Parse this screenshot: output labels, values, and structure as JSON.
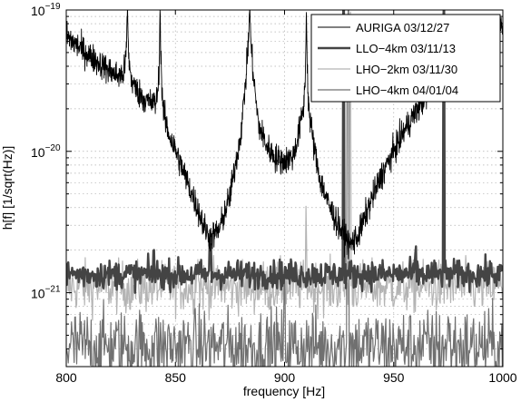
{
  "chart_data": {
    "type": "line",
    "xlabel": "frequency [Hz]",
    "ylabel": "h[f] [1/sqrt(Hz)]",
    "xlim": [
      800,
      1000
    ],
    "ylim": [
      3e-22,
      1e-19
    ],
    "y_scale": "log",
    "grid": true,
    "legend_position": "top-right",
    "x_ticks": [
      800,
      850,
      900,
      950,
      1000
    ],
    "x_tick_labels": [
      "800",
      "850",
      "900",
      "950",
      "1000"
    ],
    "y_ticks": [
      1e-21,
      1e-20,
      1e-19
    ],
    "y_tick_labels": [
      {
        "base": "10",
        "exp": "−21"
      },
      {
        "base": "10",
        "exp": "−20"
      },
      {
        "base": "10",
        "exp": "−19"
      }
    ],
    "series": [
      {
        "name": "AURIGA 03/12/27",
        "color": "#000000",
        "style": "thin",
        "x": [
          800,
          810,
          820,
          830,
          840,
          850,
          855,
          860,
          863,
          866,
          870,
          875,
          880,
          884,
          888,
          892,
          896,
          900,
          904,
          908,
          912,
          916,
          920,
          925,
          930,
          934,
          938,
          945,
          955,
          965,
          975,
          985,
          995,
          1000
        ],
        "values": [
          6.5e-20,
          4.8e-20,
          3.6e-20,
          2.7e-20,
          1.9e-20,
          9.5e-21,
          6e-21,
          3.8e-21,
          2.8e-21,
          2.3e-21,
          2.6e-21,
          4.5e-21,
          1.2e-20,
          5e-20,
          1.4e-20,
          1e-20,
          8.5e-21,
          8e-21,
          8.5e-21,
          1.4e-20,
          1.2e-20,
          6e-21,
          4e-21,
          2.8e-21,
          2.1e-21,
          2.5e-21,
          3.8e-21,
          7e-21,
          1.4e-20,
          2.5e-20,
          4.2e-20,
          5.8e-20,
          7.5e-20,
          8.5e-20
        ],
        "peaks": [
          {
            "x": 828,
            "value": 1e-19
          },
          {
            "x": 843,
            "value": 1e-19
          },
          {
            "x": 884,
            "value": 1e-19
          },
          {
            "x": 910,
            "value": 1e-19
          }
        ]
      },
      {
        "name": "LLO−4km 03/11/13",
        "color": "#444444",
        "style": "thick",
        "x": [
          800,
          1000
        ],
        "values": [
          1.35e-21,
          1.35e-21
        ],
        "peaks": [
          {
            "x": 840,
            "value": 1.9e-21
          },
          {
            "x": 866,
            "value": 2e-21
          },
          {
            "x": 927,
            "value": 1e-19
          },
          {
            "x": 960,
            "value": 1.9e-21
          },
          {
            "x": 973,
            "value": 1e-19
          }
        ]
      },
      {
        "name": "LHO−2km 03/11/30",
        "color": "#b4b4b4",
        "style": "normal",
        "x": [
          800,
          1000
        ],
        "values": [
          1.1e-21,
          1.1e-21
        ],
        "peaks": [
          {
            "x": 860,
            "value": 1.8e-21
          },
          {
            "x": 910,
            "value": 3e-21
          },
          {
            "x": 930,
            "value": 1e-19
          }
        ]
      },
      {
        "name": "LHO−4km 04/01/04",
        "color": "#707070",
        "style": "normal",
        "x": [
          800,
          1000
        ],
        "values": [
          4.2e-22,
          4.2e-22
        ],
        "peaks": [
          {
            "x": 900,
            "value": 8e-22
          },
          {
            "x": 929,
            "value": 1e-19
          },
          {
            "x": 975,
            "value": 6e-22
          }
        ]
      }
    ]
  }
}
